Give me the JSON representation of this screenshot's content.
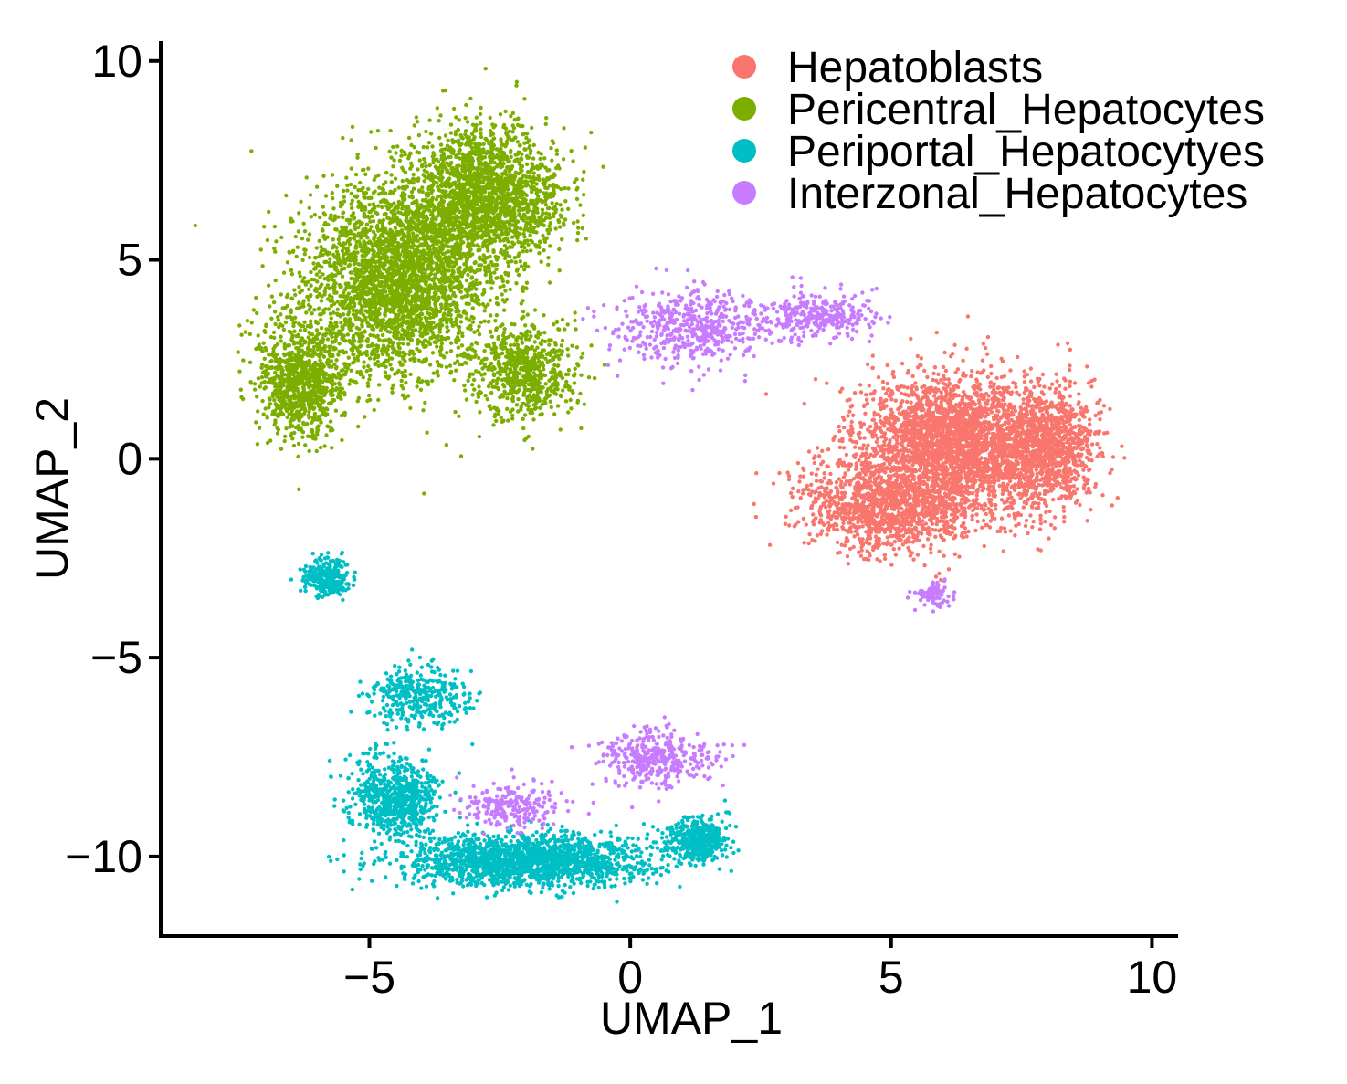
{
  "chart_data": {
    "type": "scatter",
    "title": "",
    "xlabel": "UMAP_1",
    "ylabel": "UMAP_2",
    "xlim": [
      -9,
      10.5
    ],
    "ylim": [
      -12,
      10.5
    ],
    "x_ticks": [
      -5,
      0,
      5,
      10
    ],
    "y_ticks": [
      -10,
      -5,
      0,
      5,
      10
    ],
    "x_tick_labels": [
      "−5",
      "0",
      "5",
      "10"
    ],
    "y_tick_labels": [
      "−10",
      "−5",
      "0",
      "5",
      "10"
    ],
    "grid": false,
    "legend_position": "top-right",
    "series": [
      {
        "name": "Hepatoblasts",
        "color": "#F8766D",
        "approx_points": 5000,
        "clusters": [
          {
            "center": [
              6.2,
              0.4
            ],
            "spread": [
              1.5,
              1.4
            ],
            "share": 0.55
          },
          {
            "center": [
              5.0,
              -1.2
            ],
            "spread": [
              1.4,
              1.0
            ],
            "share": 0.25
          },
          {
            "center": [
              8.0,
              0.3
            ],
            "spread": [
              0.8,
              1.2
            ],
            "share": 0.2
          }
        ]
      },
      {
        "name": "Pericentral_Hepatocytes",
        "color": "#7CAE00",
        "approx_points": 6500,
        "clusters": [
          {
            "center": [
              -4.5,
              4.5
            ],
            "spread": [
              1.5,
              2.0
            ],
            "share": 0.45
          },
          {
            "center": [
              -2.8,
              6.6
            ],
            "spread": [
              1.2,
              1.4
            ],
            "share": 0.3
          },
          {
            "center": [
              -6.3,
              2.0
            ],
            "spread": [
              0.7,
              1.2
            ],
            "share": 0.15
          },
          {
            "center": [
              -2.0,
              2.2
            ],
            "spread": [
              0.8,
              1.0
            ],
            "share": 0.1
          }
        ]
      },
      {
        "name": "Periportal_Hepatocytyes",
        "color": "#00BFC4",
        "approx_points": 3600,
        "clusters": [
          {
            "center": [
              -2.0,
              -10.1
            ],
            "spread": [
              2.0,
              0.55
            ],
            "share": 0.5
          },
          {
            "center": [
              -4.5,
              -8.5
            ],
            "spread": [
              0.7,
              0.8
            ],
            "share": 0.2
          },
          {
            "center": [
              1.3,
              -9.6
            ],
            "spread": [
              0.5,
              0.45
            ],
            "share": 0.12
          },
          {
            "center": [
              -4.0,
              -6.0
            ],
            "spread": [
              0.8,
              0.6
            ],
            "share": 0.1
          },
          {
            "center": [
              -5.8,
              -3.0
            ],
            "spread": [
              0.35,
              0.4
            ],
            "share": 0.08
          }
        ]
      },
      {
        "name": "Interzonal_Hepatocytes",
        "color": "#C77CFF",
        "approx_points": 1500,
        "clusters": [
          {
            "center": [
              1.2,
              3.3
            ],
            "spread": [
              1.3,
              0.8
            ],
            "share": 0.35
          },
          {
            "center": [
              3.6,
              3.6
            ],
            "spread": [
              1.0,
              0.5
            ],
            "share": 0.2
          },
          {
            "center": [
              0.5,
              -7.5
            ],
            "spread": [
              0.9,
              0.6
            ],
            "share": 0.25
          },
          {
            "center": [
              -2.3,
              -8.7
            ],
            "spread": [
              0.8,
              0.5
            ],
            "share": 0.15
          },
          {
            "center": [
              5.8,
              -3.4
            ],
            "spread": [
              0.3,
              0.3
            ],
            "share": 0.05
          }
        ]
      }
    ]
  }
}
